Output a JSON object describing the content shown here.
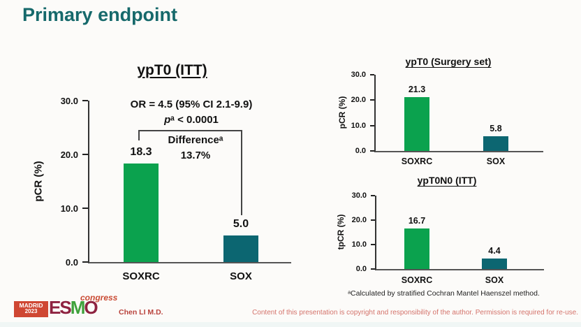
{
  "slide": {
    "title": "Primary endpoint"
  },
  "chart_data": [
    {
      "type": "bar",
      "title": "ypT0 (ITT)",
      "ylabel": "pCR (%)",
      "categories": [
        "SOXRC",
        "SOX"
      ],
      "values": [
        18.3,
        5.0
      ],
      "value_labels": [
        "18.3",
        "5.0"
      ],
      "ylim": [
        0,
        30
      ],
      "yticks": [
        0,
        10,
        20,
        30
      ],
      "ytick_labels": [
        "0.0",
        "10.0",
        "20.0",
        "30.0"
      ],
      "grid": false,
      "annotations": {
        "or_text": "OR = 4.5 (95% CI 2.1-9.9)",
        "p_italic": "p",
        "p_rest": "ᵃ < 0.0001",
        "difference_label": "Differenceᵃ",
        "difference_value": "13.7%"
      }
    },
    {
      "type": "bar",
      "title": "ypT0 (Surgery set)",
      "ylabel": "pCR (%)",
      "categories": [
        "SOXRC",
        "SOX"
      ],
      "values": [
        21.3,
        5.8
      ],
      "value_labels": [
        "21.3",
        "5.8"
      ],
      "ylim": [
        0,
        30
      ],
      "yticks": [
        0,
        10,
        20,
        30
      ],
      "ytick_labels": [
        "0.0",
        "10.0",
        "20.0",
        "30.0"
      ],
      "grid": false
    },
    {
      "type": "bar",
      "title": "ypT0N0 (ITT)",
      "ylabel": "tpCR (%)",
      "categories": [
        "SOXRC",
        "SOX"
      ],
      "values": [
        16.7,
        4.4
      ],
      "value_labels": [
        "16.7",
        "4.4"
      ],
      "ylim": [
        0,
        30
      ],
      "yticks": [
        0,
        10,
        20,
        30
      ],
      "ytick_labels": [
        "0.0",
        "10.0",
        "20.0",
        "30.0"
      ],
      "grid": false
    }
  ],
  "footnote": "ᵃCalculated by stratified Cochran Mantel Haenszel method.",
  "footer": {
    "author": "Chen LI M.D.",
    "copyright": "Content of this presentation is copyright and responsibility of the author. Permission is required for re-use.",
    "logo": {
      "city": "MADRID",
      "year": "2023",
      "brand_letters": [
        "E",
        "S",
        "M",
        "O"
      ],
      "suffix": "congress"
    }
  },
  "colors": {
    "title_teal": "#16696b",
    "bar_colors": [
      "#0ba24e",
      "#0c6671"
    ],
    "author_red": "#b9423c",
    "copyright_red": "#d4736b"
  }
}
